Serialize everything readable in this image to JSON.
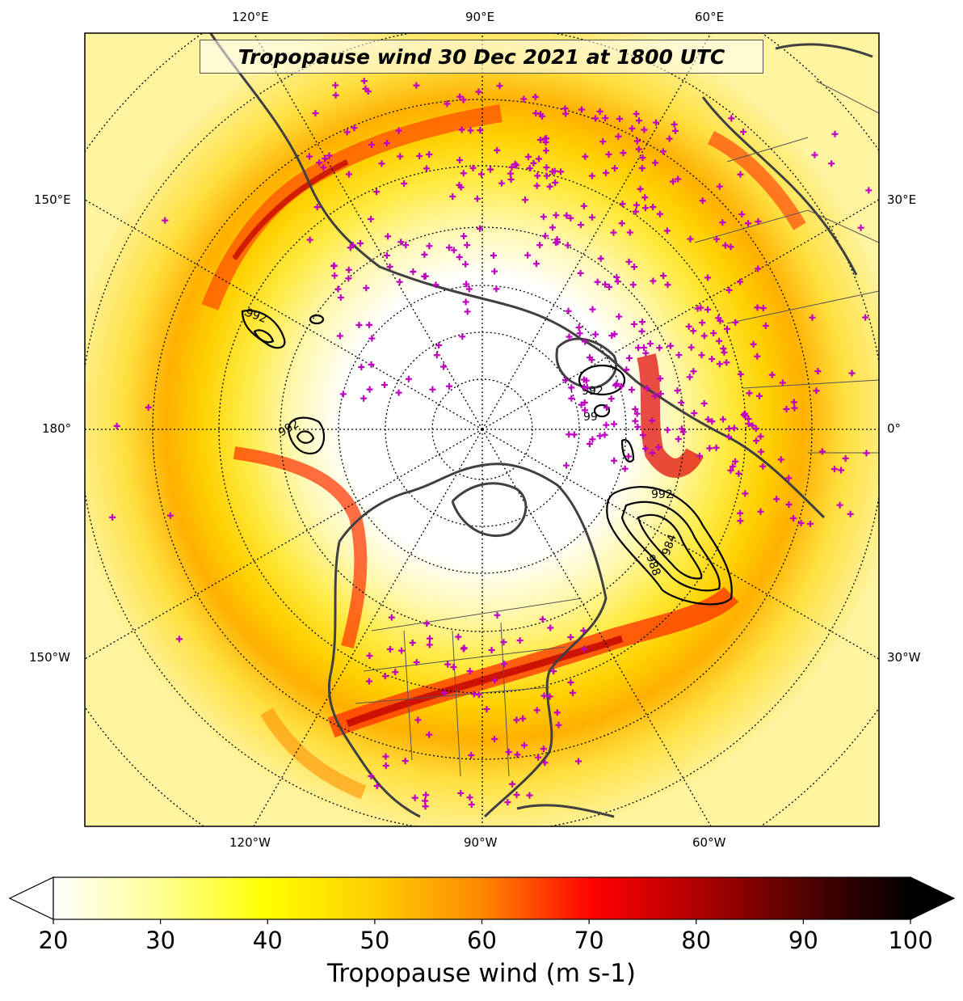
{
  "map": {
    "title": "Tropopause wind 30 Dec 2021 at 1800 UTC",
    "projection": "north polar stereographic",
    "top_longitude_labels": [
      "120°E",
      "90°E",
      "60°E"
    ],
    "bottom_longitude_labels": [
      "120°W",
      "90°W",
      "60°W"
    ],
    "left_longitude_labels": [
      "150°E",
      "180°",
      "150°W"
    ],
    "right_longitude_labels": [
      "30°E",
      "0°",
      "30°W"
    ],
    "contour_labels": [
      "992",
      "992",
      "992",
      "99",
      "992",
      "984",
      "988"
    ],
    "contour_color": "#000000",
    "coastline_color": "#404040",
    "station_marker": "plus",
    "station_color": "#c000c0"
  },
  "colorbar": {
    "label": "Tropopause wind (m s-1)",
    "min": 20,
    "max": 100,
    "ticks": [
      "20",
      "30",
      "40",
      "50",
      "60",
      "70",
      "80",
      "90",
      "100"
    ],
    "extend": "both",
    "colors": [
      "#ffffff",
      "#ffff99",
      "#ffff00",
      "#ffcc00",
      "#ff8800",
      "#ff0000",
      "#b00000",
      "#500000",
      "#000000"
    ]
  }
}
